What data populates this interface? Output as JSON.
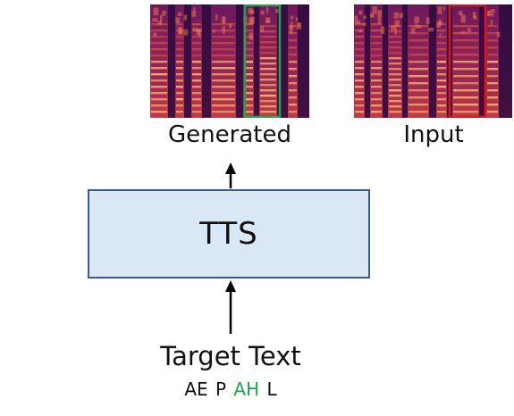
{
  "spectrograms": {
    "generated": {
      "caption": "Generated",
      "highlight_color": "#1aa84b"
    },
    "input": {
      "caption": "Input",
      "highlight_color": "#e01515"
    }
  },
  "model": {
    "label": "TTS"
  },
  "text_input": {
    "label": "Target Text",
    "phonemes": [
      {
        "text": "AE",
        "color": "#111111"
      },
      {
        "text": "P",
        "color": "#111111"
      },
      {
        "text": "AH",
        "color": "#1aa84b"
      },
      {
        "text": "L",
        "color": "#111111"
      }
    ]
  },
  "colors": {
    "box_fill": "#dae8f5",
    "box_border": "#3b5a8a",
    "spectrogram_dark": "#2a0a3e",
    "spectrogram_bright": "#f9c27a"
  }
}
